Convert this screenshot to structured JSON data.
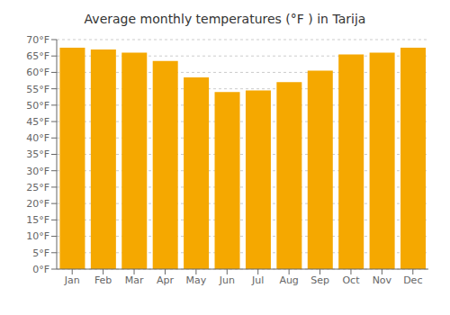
{
  "chart_data": {
    "type": "bar",
    "title": "Average monthly temperatures (°F ) in Tarija",
    "categories": [
      "Jan",
      "Feb",
      "Mar",
      "Apr",
      "May",
      "Jun",
      "Jul",
      "Aug",
      "Sep",
      "Oct",
      "Nov",
      "Dec"
    ],
    "values": [
      67.5,
      67.0,
      66.0,
      63.5,
      58.5,
      54.0,
      54.5,
      57.0,
      60.5,
      65.5,
      66.0,
      67.5
    ],
    "color": "#F5A800",
    "ylim": [
      0,
      70
    ],
    "yticks": [
      {
        "value": 0,
        "label": "0°F"
      },
      {
        "value": 5,
        "label": "5°F"
      },
      {
        "value": 10,
        "label": "10°F"
      },
      {
        "value": 15,
        "label": "15°F"
      },
      {
        "value": 20,
        "label": "20°F"
      },
      {
        "value": 25,
        "label": "25°F"
      },
      {
        "value": 30,
        "label": "30°F"
      },
      {
        "value": 35,
        "label": "35°F"
      },
      {
        "value": 40,
        "label": "40°F"
      },
      {
        "value": 45,
        "label": "45°F"
      },
      {
        "value": 50,
        "label": "50°F"
      },
      {
        "value": 55,
        "label": "55°F"
      },
      {
        "value": 60,
        "label": "60°F"
      },
      {
        "value": 65,
        "label": "65°F"
      },
      {
        "value": 70,
        "label": "70°F"
      }
    ],
    "grid": true
  }
}
